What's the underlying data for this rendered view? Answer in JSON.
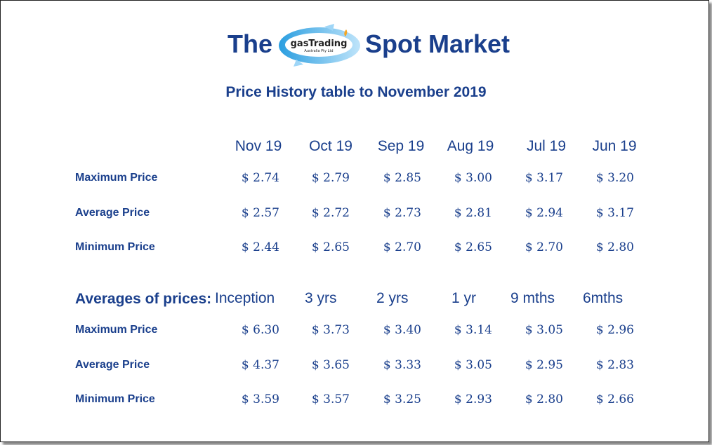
{
  "header": {
    "title_left": "The",
    "title_right": "Spot Market",
    "logo": {
      "name": "gasTrading",
      "subtitle": "Australia Pty Ltd"
    },
    "subtitle": "Price History table to November  2019"
  },
  "monthly": {
    "columns": [
      "Nov 19",
      "Oct 19",
      "Sep 19",
      "Aug 19",
      "Jul 19",
      "Jun 19"
    ],
    "rows": [
      {
        "label": "Maximum Price",
        "values": [
          "$ 2.74",
          "$ 2.79",
          "$ 2.85",
          "$ 3.00",
          "$ 3.17",
          "$ 3.20"
        ]
      },
      {
        "label": "Average Price",
        "values": [
          "$ 2.57",
          "$ 2.72",
          "$ 2.73",
          "$ 2.81",
          "$ 2.94",
          "$ 3.17"
        ]
      },
      {
        "label": "Minimum Price",
        "values": [
          "$ 2.44",
          "$ 2.65",
          "$ 2.70",
          "$ 2.65",
          "$ 2.70",
          "$ 2.80"
        ]
      }
    ]
  },
  "averages": {
    "title": "Averages of prices:",
    "columns": [
      "Inception",
      "3 yrs",
      "2 yrs",
      "1 yr",
      "9 mths",
      "6mths"
    ],
    "rows": [
      {
        "label": "Maximum Price",
        "values": [
          "$ 6.30",
          "$ 3.73",
          "$ 3.40",
          "$ 3.14",
          "$ 3.05",
          "$ 2.96"
        ]
      },
      {
        "label": "Average Price",
        "values": [
          "$ 4.37",
          "$ 3.65",
          "$ 3.33",
          "$ 3.05",
          "$ 2.95",
          "$ 2.83"
        ]
      },
      {
        "label": "Minimum Price",
        "values": [
          "$ 3.59",
          "$ 3.57",
          "$ 3.25",
          "$ 2.93",
          "$ 2.80",
          "$ 2.66"
        ]
      }
    ]
  },
  "colors": {
    "text": "#1a3f8c",
    "logo_arrow": "#5bb8ec"
  }
}
